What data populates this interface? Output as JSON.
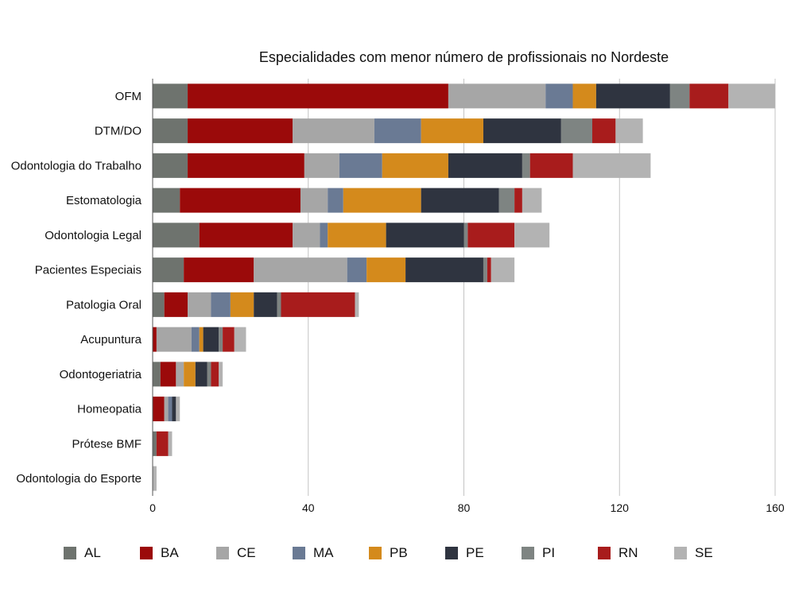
{
  "chart_data": {
    "type": "bar",
    "orientation": "horizontal",
    "stacked": true,
    "title": "Especialidades com menor número de profissionais no Nordeste",
    "categories": [
      "OFM",
      "DTM/DO",
      "Odontologia do Trabalho",
      "Estomatologia",
      "Odontologia Legal",
      "Pacientes Especiais",
      "Patologia Oral",
      "Acupuntura",
      "Odontogeriatria",
      "Homeopatia",
      "Prótese BMF",
      "Odontologia do Esporte"
    ],
    "series": [
      {
        "name": "AL",
        "color": "#6e736e",
        "values": [
          9,
          9,
          9,
          7,
          12,
          8,
          3,
          0,
          2,
          0,
          1,
          0
        ]
      },
      {
        "name": "BA",
        "color": "#9b0a0a",
        "values": [
          67,
          27,
          30,
          31,
          24,
          18,
          6,
          1,
          4,
          3,
          0,
          0
        ]
      },
      {
        "name": "CE",
        "color": "#a6a6a6",
        "values": [
          25,
          21,
          9,
          7,
          7,
          24,
          6,
          9,
          2,
          1,
          0,
          0
        ]
      },
      {
        "name": "MA",
        "color": "#6a7a94",
        "values": [
          7,
          12,
          11,
          4,
          2,
          5,
          5,
          2,
          0,
          1,
          0,
          0
        ]
      },
      {
        "name": "PB",
        "color": "#d48a1c",
        "values": [
          6,
          16,
          17,
          20,
          15,
          10,
          6,
          1,
          3,
          0,
          0,
          0
        ]
      },
      {
        "name": "PE",
        "color": "#2f3440",
        "values": [
          19,
          20,
          19,
          20,
          20,
          20,
          6,
          4,
          3,
          1,
          0,
          0
        ]
      },
      {
        "name": "PI",
        "color": "#7e8482",
        "values": [
          5,
          8,
          2,
          4,
          1,
          1,
          1,
          1,
          1,
          0,
          0,
          0
        ]
      },
      {
        "name": "RN",
        "color": "#a81c1c",
        "values": [
          10,
          6,
          11,
          2,
          12,
          1,
          19,
          3,
          2,
          0,
          3,
          0
        ]
      },
      {
        "name": "SE",
        "color": "#b3b3b3",
        "values": [
          12,
          7,
          20,
          5,
          9,
          6,
          1,
          3,
          1,
          1,
          1,
          1
        ]
      }
    ],
    "xlim": [
      0,
      160
    ],
    "xticks": [
      0,
      40,
      80,
      120,
      160
    ],
    "xlabel": "",
    "ylabel": "",
    "grid": "vertical",
    "legend_position": "bottom"
  }
}
